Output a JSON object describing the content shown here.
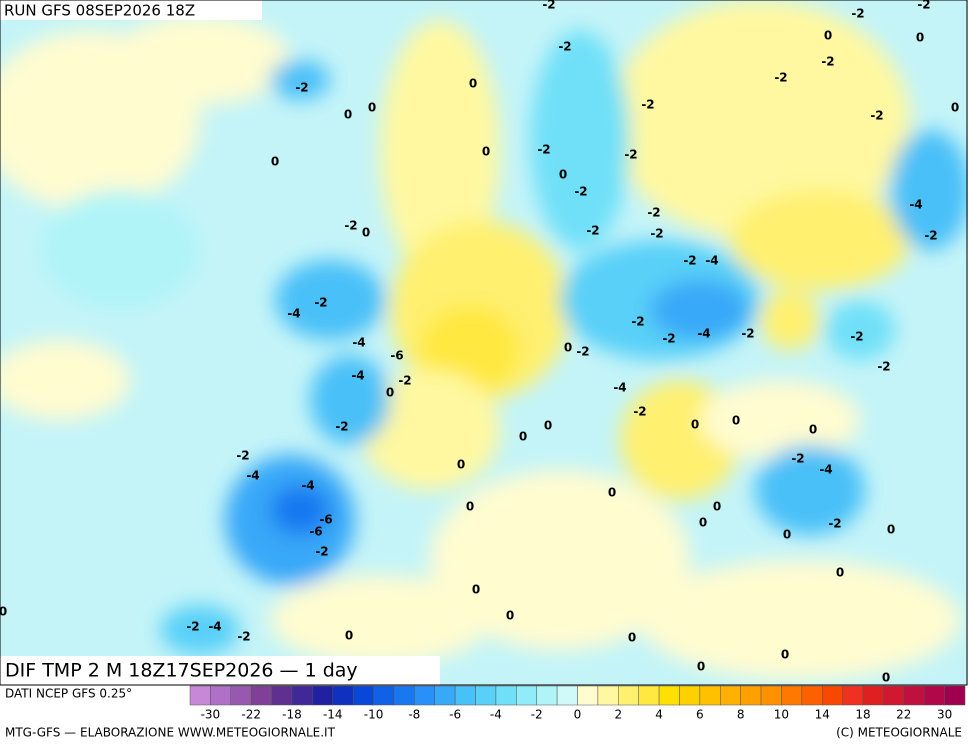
{
  "header": {
    "title": "RUN GFS 08SEP2026 18Z"
  },
  "caption": "DIF TMP 2 M 18Z17SEP2026 — 1 day",
  "source": "DATI NCEP GFS 0.25°",
  "credit_left": "MTG-GFS — ELABORAZIONE WWW.METEOGIORNALE.IT",
  "credit_right": "(C) METEOGIORNALE",
  "map": {
    "labels": [
      -2,
      -2,
      -2,
      0,
      0,
      -2,
      -2,
      -2,
      0,
      -2,
      0,
      0,
      -2,
      -2,
      0,
      0,
      -2,
      -2,
      0,
      0,
      -2,
      -2,
      -4,
      -2,
      0,
      -2,
      -2,
      -2,
      -2,
      -4,
      -2,
      -4,
      -2,
      -2,
      -4,
      -2,
      -2,
      -4,
      -6,
      0,
      -2,
      -2,
      -4,
      -2,
      0,
      -4,
      -2,
      0,
      0,
      -2,
      0,
      0,
      0,
      -2,
      0,
      -2,
      -4,
      -4,
      -4,
      0,
      0,
      0,
      -6,
      -2,
      0,
      -6,
      0,
      0,
      -2,
      0,
      0,
      0,
      0,
      -2,
      -4,
      -2,
      0,
      0,
      0,
      0,
      0
    ]
  },
  "colorbar": {
    "labels": [
      -30,
      -22,
      -18,
      -14,
      -10,
      -8,
      -6,
      -4,
      -2,
      0,
      2,
      4,
      6,
      8,
      10,
      14,
      18,
      22,
      30
    ],
    "colors": [
      "#c888d8",
      "#b070c8",
      "#9858b0",
      "#804098",
      "#603090",
      "#402898",
      "#2020a0",
      "#1030c0",
      "#0848d8",
      "#1060e8",
      "#1878f0",
      "#2890f8",
      "#38a8f8",
      "#48c0f8",
      "#58d0f8",
      "#70e0f8",
      "#90ecf8",
      "#b0f4f8",
      "#d0fafa",
      "#fffcd0",
      "#fff8a0",
      "#fff070",
      "#ffe840",
      "#ffe000",
      "#ffd000",
      "#ffc000",
      "#ffb000",
      "#ffa000",
      "#ff9000",
      "#ff7800",
      "#ff6000",
      "#f84800",
      "#f03020",
      "#e02020",
      "#d01830",
      "#c01040",
      "#b00848",
      "#a00050"
    ]
  }
}
